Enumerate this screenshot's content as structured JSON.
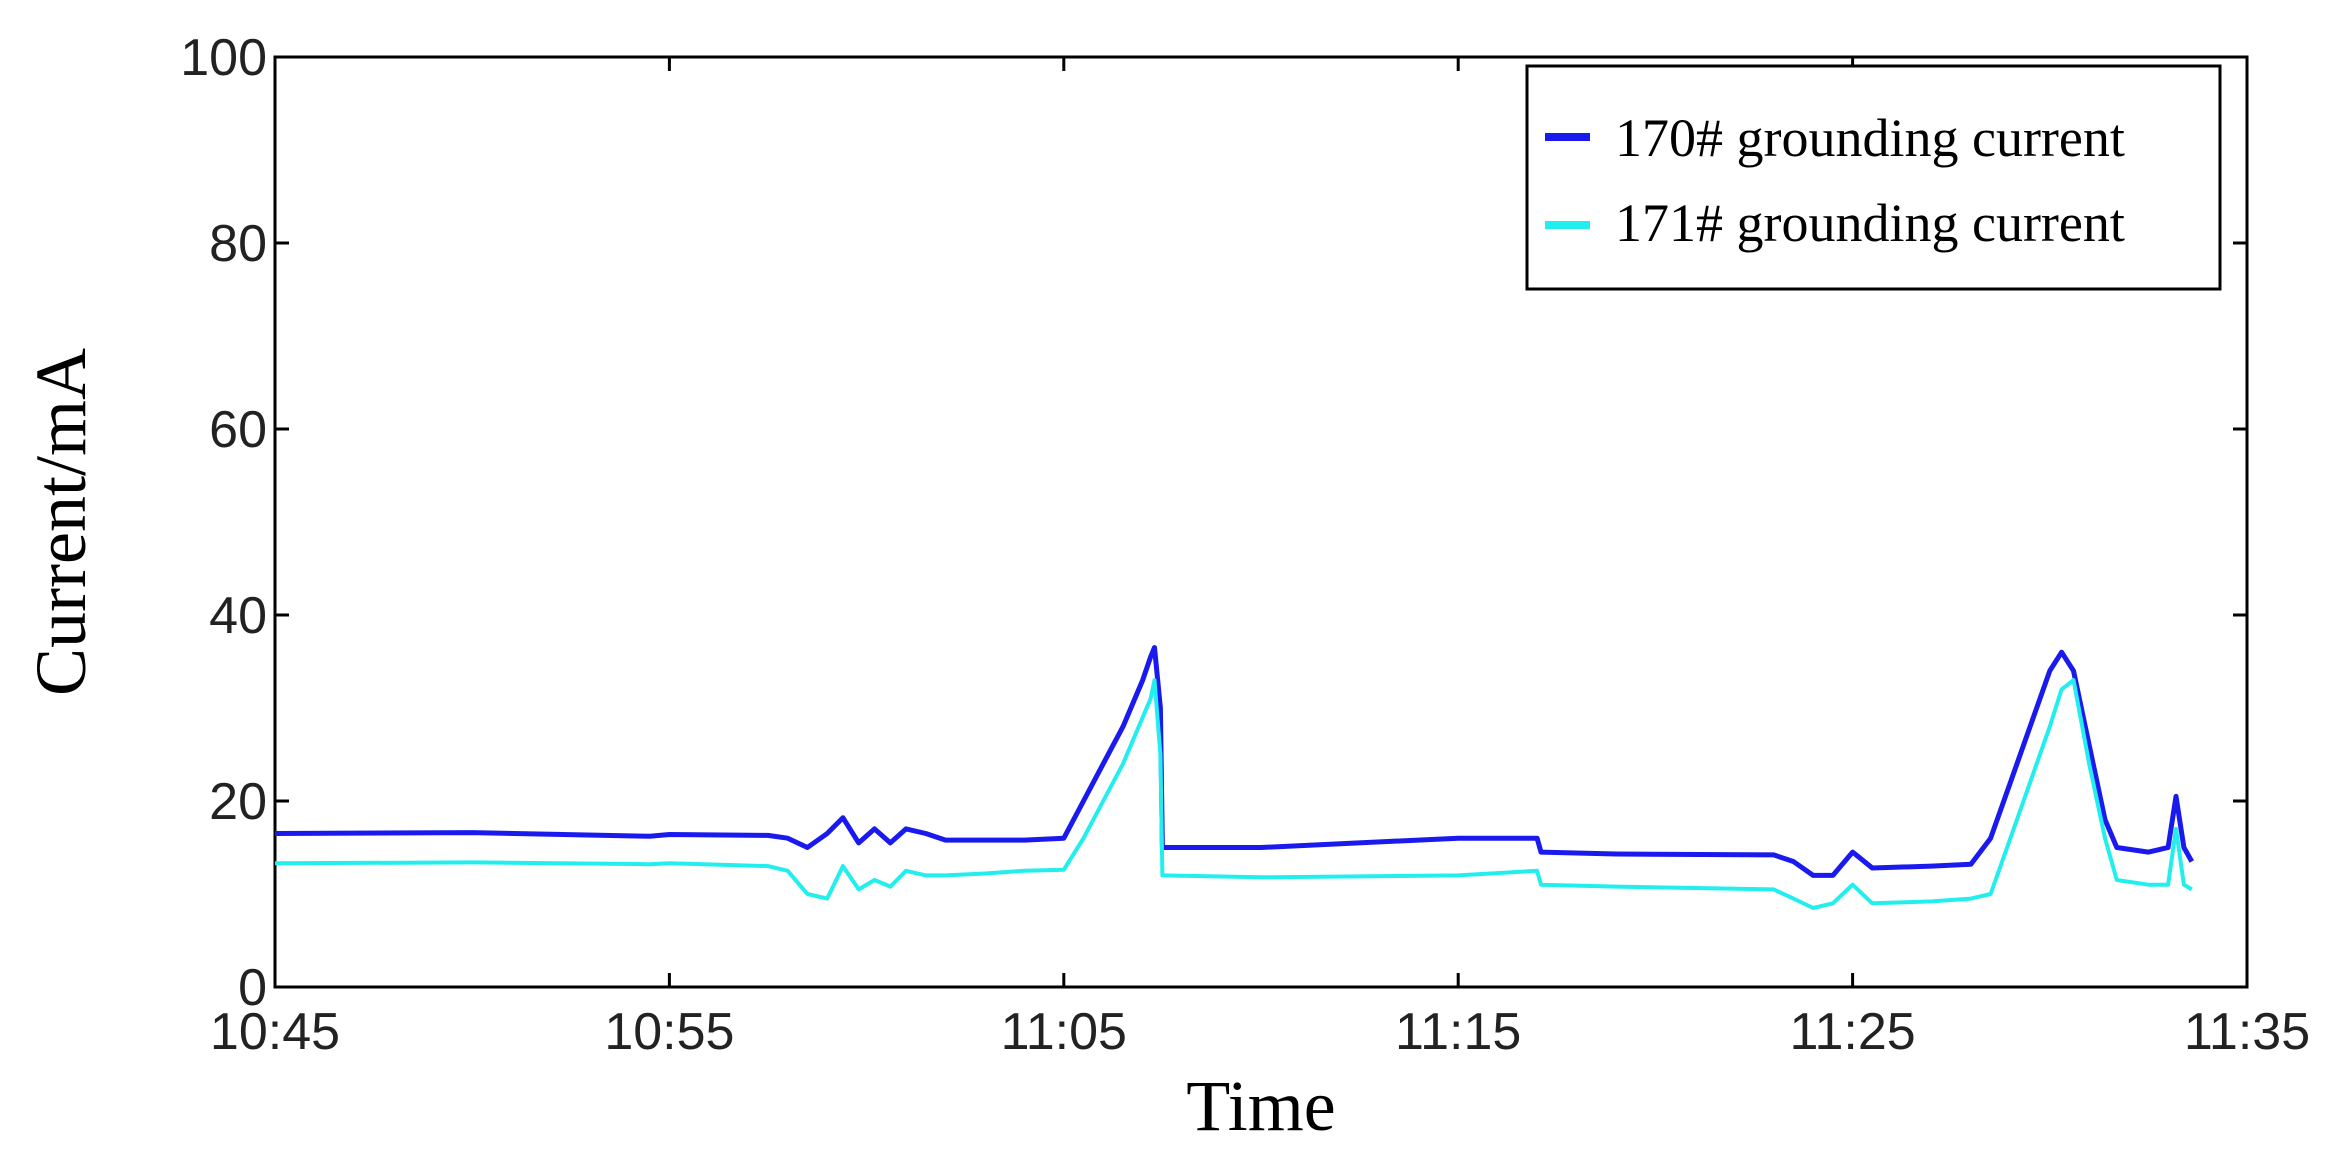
{
  "chart_data": {
    "type": "line",
    "xlabel": "Time",
    "ylabel": "Current/mA",
    "x_ticks": [
      "10:45",
      "10:55",
      "11:05",
      "11:15",
      "11:25",
      "11:35"
    ],
    "x_range_minutes": [
      0,
      50
    ],
    "y_ticks": [
      "0",
      "20",
      "40",
      "60",
      "80",
      "100"
    ],
    "ylim": [
      0,
      100
    ],
    "grid": false,
    "legend_position": "top-right",
    "series": [
      {
        "name": "170# grounding current",
        "color": "#1a1aee",
        "points": [
          [
            0,
            16.5
          ],
          [
            5,
            16.6
          ],
          [
            9.5,
            16.2
          ],
          [
            10,
            16.4
          ],
          [
            12.5,
            16.3
          ],
          [
            13,
            16
          ],
          [
            13.5,
            15
          ],
          [
            14,
            16.5
          ],
          [
            14.4,
            18.2
          ],
          [
            14.8,
            15.5
          ],
          [
            15.2,
            17
          ],
          [
            15.6,
            15.5
          ],
          [
            16,
            17
          ],
          [
            16.5,
            16.5
          ],
          [
            17,
            15.8
          ],
          [
            18,
            15.8
          ],
          [
            19,
            15.8
          ],
          [
            20,
            16
          ],
          [
            20.5,
            20
          ],
          [
            21,
            24
          ],
          [
            21.5,
            28
          ],
          [
            22,
            33
          ],
          [
            22.2,
            35.5
          ],
          [
            22.3,
            36.5
          ],
          [
            22.45,
            30
          ],
          [
            22.5,
            15
          ],
          [
            25,
            15
          ],
          [
            30,
            16
          ],
          [
            32,
            16
          ],
          [
            32.1,
            14.5
          ],
          [
            34,
            14.3
          ],
          [
            38,
            14.2
          ],
          [
            38.5,
            13.5
          ],
          [
            39,
            12
          ],
          [
            39.5,
            12
          ],
          [
            40,
            14.5
          ],
          [
            40.5,
            12.8
          ],
          [
            42,
            13
          ],
          [
            43,
            13.2
          ],
          [
            43.5,
            16
          ],
          [
            44,
            22
          ],
          [
            44.5,
            28
          ],
          [
            45,
            34
          ],
          [
            45.3,
            36
          ],
          [
            45.6,
            34
          ],
          [
            46,
            26
          ],
          [
            46.4,
            18
          ],
          [
            46.7,
            15
          ],
          [
            47.5,
            14.5
          ],
          [
            48,
            15
          ],
          [
            48.2,
            20.5
          ],
          [
            48.4,
            15
          ],
          [
            48.6,
            13.5
          ]
        ]
      },
      {
        "name": "171# grounding current",
        "color": "#22eeee",
        "points": [
          [
            0,
            13.3
          ],
          [
            5,
            13.4
          ],
          [
            9.5,
            13.2
          ],
          [
            10,
            13.3
          ],
          [
            12.5,
            13
          ],
          [
            13,
            12.5
          ],
          [
            13.5,
            10
          ],
          [
            14,
            9.5
          ],
          [
            14.4,
            13
          ],
          [
            14.8,
            10.5
          ],
          [
            15.2,
            11.5
          ],
          [
            15.6,
            10.8
          ],
          [
            16,
            12.5
          ],
          [
            16.5,
            12
          ],
          [
            17,
            12
          ],
          [
            18,
            12.2
          ],
          [
            19,
            12.5
          ],
          [
            20,
            12.6
          ],
          [
            20.5,
            16
          ],
          [
            21,
            20
          ],
          [
            21.5,
            24
          ],
          [
            22,
            29
          ],
          [
            22.2,
            31
          ],
          [
            22.3,
            33
          ],
          [
            22.45,
            25
          ],
          [
            22.5,
            12
          ],
          [
            25,
            11.8
          ],
          [
            30,
            12
          ],
          [
            32,
            12.5
          ],
          [
            32.1,
            11
          ],
          [
            34,
            10.8
          ],
          [
            38,
            10.5
          ],
          [
            38.5,
            9.5
          ],
          [
            39,
            8.5
          ],
          [
            39.5,
            9
          ],
          [
            40,
            11
          ],
          [
            40.5,
            9
          ],
          [
            42,
            9.2
          ],
          [
            43,
            9.5
          ],
          [
            43.5,
            10
          ],
          [
            44,
            16
          ],
          [
            44.5,
            22
          ],
          [
            45,
            28
          ],
          [
            45.3,
            32
          ],
          [
            45.6,
            33
          ],
          [
            46,
            24
          ],
          [
            46.4,
            16
          ],
          [
            46.7,
            11.5
          ],
          [
            47.5,
            11
          ],
          [
            48,
            11
          ],
          [
            48.2,
            17
          ],
          [
            48.4,
            11
          ],
          [
            48.6,
            10.5
          ]
        ]
      }
    ]
  }
}
